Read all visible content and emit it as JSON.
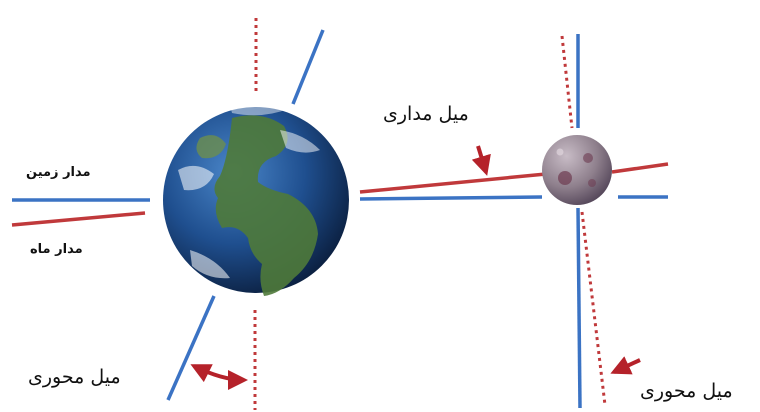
{
  "labels": {
    "earth_orbit": "مدار زمین",
    "moon_orbit": "مدار ماه",
    "orbital_tilt": "میل مداری",
    "axial_tilt_earth": "میل  محوری",
    "axial_tilt_moon": "میل  محوری"
  },
  "colors": {
    "blue_line": "#3b73c4",
    "red_line": "#c0393b",
    "dotted_red": "#c0393b",
    "arrow": "#b5222a",
    "ocean": "#1f4f8f",
    "land": "#4f7a3a",
    "moon": "#8e7f8c"
  }
}
